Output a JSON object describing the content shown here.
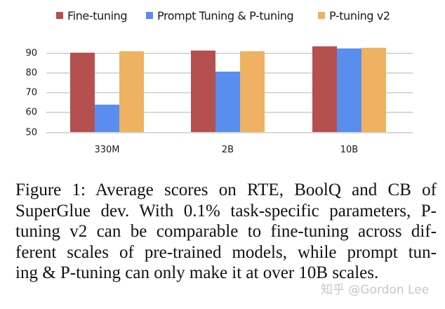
{
  "chart_data": {
    "type": "bar",
    "title": "",
    "xlabel": "",
    "ylabel": "",
    "categories": [
      "330M",
      "2B",
      "10B"
    ],
    "series": [
      {
        "name": "Fine-tuning",
        "color": "#B5504F",
        "values": [
          90.4,
          91.4,
          93.5
        ]
      },
      {
        "name": "Prompt Tuning & P-tuning",
        "color": "#5A8EEE",
        "values": [
          64.1,
          80.7,
          92.2
        ]
      },
      {
        "name": "P-tuning v2",
        "color": "#EEB262",
        "values": [
          90.8,
          90.8,
          92.8
        ]
      }
    ],
    "yticks": [
      "50",
      "60",
      "70",
      "80",
      "90"
    ],
    "ylim": [
      50,
      95
    ],
    "grid": true,
    "legend_position": "top"
  },
  "legend": {
    "items": [
      {
        "label": "Fine-tuning",
        "color": "#B5504F"
      },
      {
        "label": "Prompt Tuning & P-tuning",
        "color": "#5A8EEE"
      },
      {
        "label": "P-tuning v2",
        "color": "#EEB262"
      }
    ]
  },
  "caption": {
    "lines": [
      "Figure 1:  Average scores on RTE, BoolQ and CB of",
      "SuperGlue dev. With 0.1% task-specific parameters, P-",
      "tuning v2 can be comparable to fine-tuning across dif-",
      "ferent scales of pre-trained models, while prompt tun-",
      "ing & P-tuning can only make it at over 10B scales."
    ]
  },
  "watermark": {
    "text": "知乎 @Gordon Lee"
  }
}
